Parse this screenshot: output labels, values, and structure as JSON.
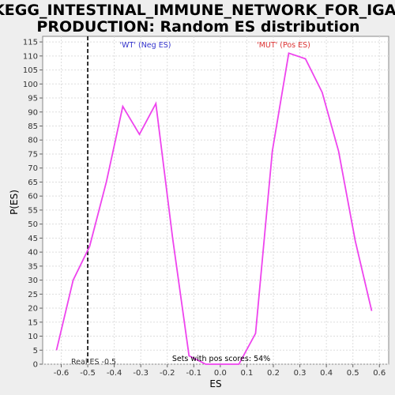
{
  "chart_data": {
    "type": "line",
    "title_line1": "KEGG_INTESTINAL_IMMUNE_NETWORK_FOR_IGA_",
    "title_line2": "PRODUCTION: Random ES distribution",
    "xlabel": "ES",
    "ylabel": "P(ES)",
    "xlim": [
      -0.67,
      0.635
    ],
    "ylim": [
      0,
      117
    ],
    "x_ticks": [
      -0.6,
      -0.5,
      -0.4,
      -0.3,
      -0.2,
      -0.1,
      0.0,
      0.1,
      0.2,
      0.3,
      0.4,
      0.5,
      0.6
    ],
    "x_tick_labels": [
      "-0.6",
      "-0.5",
      "-0.4",
      "-0.3",
      "-0.2",
      "-0.1",
      "0.0",
      "0.1",
      "0.2",
      "0.3",
      "0.4",
      "0.5",
      "0.6"
    ],
    "y_ticks": [
      0,
      5,
      10,
      15,
      20,
      25,
      30,
      35,
      40,
      45,
      50,
      55,
      60,
      65,
      70,
      75,
      80,
      85,
      90,
      95,
      100,
      105,
      110,
      115
    ],
    "y_tick_labels": [
      "0",
      "5",
      "10",
      "15",
      "20",
      "25",
      "30",
      "35",
      "40",
      "45",
      "50",
      "55",
      "60",
      "65",
      "70",
      "75",
      "80",
      "85",
      "90",
      "95",
      "100",
      "105",
      "110",
      "115"
    ],
    "grid": true,
    "line_color": "#ee44ee",
    "series": [
      {
        "x": [
          -0.618,
          -0.555,
          -0.493,
          -0.43,
          -0.368,
          -0.305,
          -0.243,
          -0.18,
          -0.118,
          -0.055,
          0.008,
          0.07,
          0.133,
          0.196,
          0.258,
          0.321,
          0.384,
          0.446,
          0.509,
          0.571
        ],
        "y": [
          5,
          30,
          42,
          65,
          92,
          82,
          93,
          45,
          3,
          0,
          0,
          0,
          11,
          76,
          111,
          109,
          97,
          76,
          44,
          19
        ]
      }
    ],
    "real_es": {
      "value": -0.5,
      "label": "Real ES -0.5"
    },
    "annotations": {
      "wt": {
        "text": "'WT' (Neg ES)",
        "color": "#3333cc"
      },
      "mut": {
        "text": "'MUT' (Pos ES)",
        "color": "#dd3333"
      },
      "pos_scores": {
        "text": "Sets with pos scores: 54%",
        "color": "#000000"
      }
    }
  }
}
